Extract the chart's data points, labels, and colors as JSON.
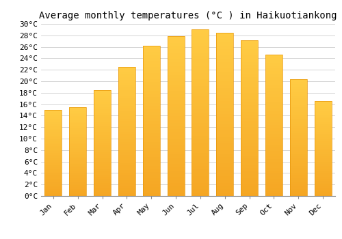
{
  "months": [
    "Jan",
    "Feb",
    "Mar",
    "Apr",
    "May",
    "Jun",
    "Jul",
    "Aug",
    "Sep",
    "Oct",
    "Nov",
    "Dec"
  ],
  "temperatures": [
    15.0,
    15.5,
    18.5,
    22.5,
    26.2,
    27.8,
    29.0,
    28.5,
    27.2,
    24.7,
    20.3,
    16.5
  ],
  "bar_color_top": "#FFCC44",
  "bar_color_bottom": "#F5A623",
  "bar_edge_color": "#E8960A",
  "title": "Average monthly temperatures (°C ) in Haikuotiankong",
  "ylim": [
    0,
    30
  ],
  "ytick_step": 2,
  "background_color": "#FFFFFF",
  "grid_color": "#CCCCCC",
  "title_fontsize": 10,
  "tick_fontsize": 8,
  "font_family": "monospace"
}
